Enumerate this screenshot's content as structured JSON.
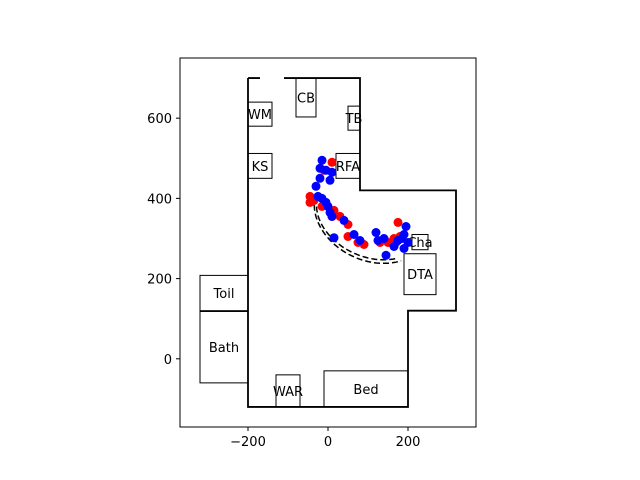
{
  "chart_data": {
    "type": "scatter",
    "xlim": [
      -370,
      370
    ],
    "ylim": [
      -170,
      750
    ],
    "x_ticks": [
      {
        "value": -200,
        "label": "−200"
      },
      {
        "value": 0,
        "label": "0"
      },
      {
        "value": 200,
        "label": "200"
      }
    ],
    "y_ticks": [
      {
        "value": 0,
        "label": "0"
      },
      {
        "value": 200,
        "label": "200"
      },
      {
        "value": 400,
        "label": "400"
      },
      {
        "value": 600,
        "label": "600"
      }
    ],
    "grid": false,
    "floor_outline": [
      [
        -200,
        700
      ],
      [
        80,
        700
      ],
      [
        80,
        420
      ],
      [
        320,
        420
      ],
      [
        320,
        120
      ],
      [
        200,
        120
      ],
      [
        200,
        -120
      ],
      [
        -200,
        -120
      ],
      [
        -200,
        700
      ]
    ],
    "door_gap": [
      [
        -170,
        700
      ],
      [
        -110,
        700
      ]
    ],
    "rooms": [
      {
        "name": "CB",
        "x0": -80,
        "x1": -30,
        "y0": 603,
        "y1": 700
      },
      {
        "name": "WM",
        "x0": -200,
        "x1": -140,
        "y0": 580,
        "y1": 640
      },
      {
        "name": "TB",
        "x0": 50,
        "x1": 80,
        "y0": 570,
        "y1": 630
      },
      {
        "name": "KS",
        "x0": -200,
        "x1": -140,
        "y0": 450,
        "y1": 512
      },
      {
        "name": "RFA",
        "x0": 20,
        "x1": 80,
        "y0": 450,
        "y1": 512
      },
      {
        "name": "Cha",
        "x0": 210,
        "x1": 250,
        "y0": 272,
        "y1": 310
      },
      {
        "name": "DTA",
        "x0": 190,
        "x1": 270,
        "y0": 160,
        "y1": 262
      },
      {
        "name": "Toil",
        "x0": -320,
        "x1": -200,
        "y0": 120,
        "y1": 208
      },
      {
        "name": "Bath",
        "x0": -320,
        "x1": -200,
        "y0": -60,
        "y1": 118
      },
      {
        "name": "WAR",
        "x0": -130,
        "x1": -70,
        "y0": -120,
        "y1": -40
      },
      {
        "name": "Bed",
        "x0": -10,
        "x1": 200,
        "y0": -120,
        "y1": -30
      }
    ],
    "series": [
      {
        "color": "#ff0000",
        "points": [
          [
            10,
            490
          ],
          [
            -10,
            470
          ],
          [
            -45,
            405
          ],
          [
            -45,
            390
          ],
          [
            -35,
            395
          ],
          [
            -15,
            380
          ],
          [
            30,
            355
          ],
          [
            50,
            335
          ],
          [
            50,
            305
          ],
          [
            75,
            290
          ],
          [
            90,
            285
          ],
          [
            130,
            290
          ],
          [
            150,
            290
          ],
          [
            165,
            300
          ],
          [
            175,
            340
          ],
          [
            180,
            305
          ],
          [
            170,
            290
          ],
          [
            165,
            285
          ],
          [
            10,
            355
          ],
          [
            15,
            370
          ]
        ]
      },
      {
        "color": "#0000ff",
        "points": [
          [
            -15,
            495
          ],
          [
            -20,
            475
          ],
          [
            -5,
            470
          ],
          [
            10,
            465
          ],
          [
            -20,
            450
          ],
          [
            5,
            445
          ],
          [
            -30,
            430
          ],
          [
            -25,
            405
          ],
          [
            -15,
            400
          ],
          [
            -5,
            390
          ],
          [
            0,
            380
          ],
          [
            5,
            365
          ],
          [
            10,
            355
          ],
          [
            40,
            345
          ],
          [
            65,
            310
          ],
          [
            15,
            302
          ],
          [
            80,
            295
          ],
          [
            120,
            315
          ],
          [
            125,
            295
          ],
          [
            140,
            300
          ],
          [
            145,
            258
          ],
          [
            165,
            280
          ],
          [
            175,
            295
          ],
          [
            185,
            300
          ],
          [
            190,
            310
          ],
          [
            195,
            330
          ],
          [
            200,
            290
          ],
          [
            190,
            275
          ]
        ]
      }
    ],
    "trajectory_ellipses": [
      {
        "cx": 105,
        "cy": 355,
        "rx": 140,
        "ry": 100,
        "rotation": -25,
        "t_start": 200,
        "t_end": 320
      },
      {
        "cx": 110,
        "cy": 360,
        "rx": 150,
        "ry": 115,
        "rotation": -25,
        "t_start": 200,
        "t_end": 320
      }
    ]
  }
}
